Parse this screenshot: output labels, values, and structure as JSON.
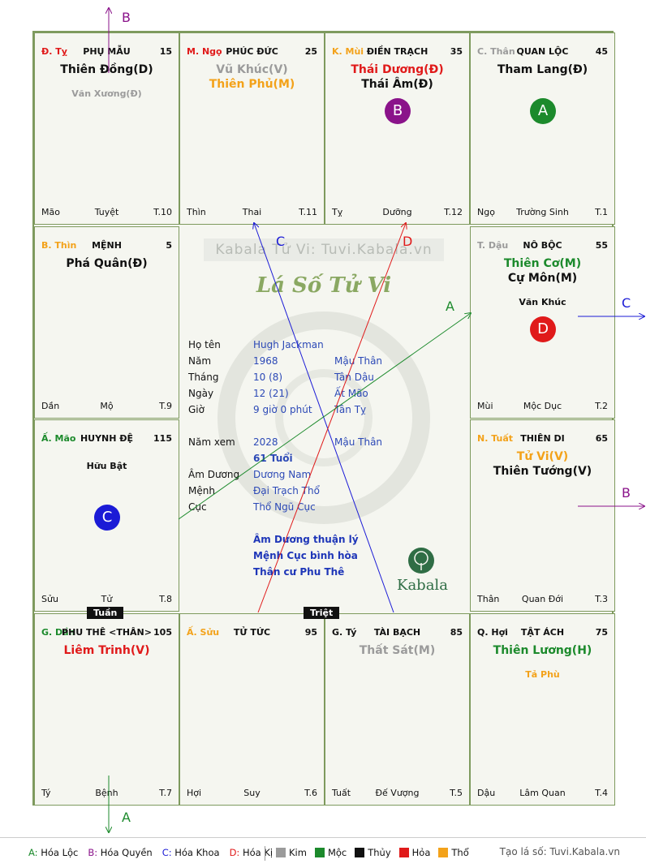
{
  "colors": {
    "green": "#1c8a2c",
    "purple": "#8a138a",
    "blue": "#1b1bd6",
    "red": "#e01a1a",
    "gray": "#9b9b9b",
    "orange": "#f3a21a",
    "border": "#7e9a5e"
  },
  "cells": [
    {
      "can_chi": "Đ. Tỵ",
      "can_chi_color": "#e01a1a",
      "palace": "PHỤ MẪU",
      "num": "15",
      "stars": [
        {
          "t": "Thiên Đồng(D)",
          "c": "#111111"
        }
      ],
      "minor": [
        {
          "t": "Văn Xương(Đ)",
          "c": "#9b9b9b"
        }
      ],
      "bl": "Mão",
      "bc": "Tuyệt",
      "br": "T.10"
    },
    {
      "can_chi": "M. Ngọ",
      "can_chi_color": "#e01a1a",
      "palace": "PHÚC ĐỨC",
      "num": "25",
      "stars": [
        {
          "t": "Vũ Khúc(V)",
          "c": "#9b9b9b"
        },
        {
          "t": "Thiên Phủ(M)",
          "c": "#f3a21a"
        }
      ],
      "minor": [],
      "bl": "Thìn",
      "bc": "Thai",
      "br": "T.11"
    },
    {
      "can_chi": "K. Mùi",
      "can_chi_color": "#f3a21a",
      "palace": "ĐIỀN TRẠCH",
      "num": "35",
      "stars": [
        {
          "t": "Thái Dương(Đ)",
          "c": "#e01a1a"
        },
        {
          "t": "Thái Âm(Đ)",
          "c": "#111111"
        }
      ],
      "minor": [],
      "bl": "Tỵ",
      "bc": "Dưỡng",
      "br": "T.12"
    },
    {
      "can_chi": "C. Thân",
      "can_chi_color": "#9b9b9b",
      "palace": "QUAN LỘC",
      "num": "45",
      "stars": [
        {
          "t": "Tham Lang(Đ)",
          "c": "#111111"
        }
      ],
      "minor": [],
      "bl": "Ngọ",
      "bc": "Trường Sinh",
      "br": "T.1"
    },
    {
      "can_chi": "B. Thìn",
      "can_chi_color": "#f3a21a",
      "palace": "MỆNH",
      "num": "5",
      "stars": [
        {
          "t": "Phá Quân(Đ)",
          "c": "#111111"
        }
      ],
      "minor": [],
      "bl": "Dần",
      "bc": "Mộ",
      "br": "T.9"
    },
    {
      "can_chi": "T. Dậu",
      "can_chi_color": "#9b9b9b",
      "palace": "NÔ BỘC",
      "num": "55",
      "stars": [
        {
          "t": "Thiên Cơ(M)",
          "c": "#1c8a2c"
        },
        {
          "t": "Cự Môn(M)",
          "c": "#111111"
        }
      ],
      "minor": [
        {
          "t": "Văn Khúc",
          "c": "#111111"
        }
      ],
      "bl": "Mùi",
      "bc": "Mộc Dục",
      "br": "T.2"
    },
    {
      "can_chi": "Ấ. Mão",
      "can_chi_color": "#1c8a2c",
      "palace": "HUYNH ĐỆ",
      "num": "115",
      "stars": [],
      "minor": [
        {
          "t": "Hữu Bật",
          "c": "#111111"
        }
      ],
      "bl": "Sửu",
      "bc": "Tử",
      "br": "T.8"
    },
    {
      "can_chi": "N. Tuất",
      "can_chi_color": "#f3a21a",
      "palace": "THIÊN DI",
      "num": "65",
      "stars": [
        {
          "t": "Tử Vi(V)",
          "c": "#f3a21a"
        },
        {
          "t": "Thiên Tướng(V)",
          "c": "#111111"
        }
      ],
      "minor": [],
      "bl": "Thân",
      "bc": "Quan Đới",
      "br": "T.3"
    },
    {
      "can_chi": "G. Dần",
      "can_chi_color": "#1c8a2c",
      "palace": "PHU THÊ <THÂN>",
      "num": "105",
      "stars": [
        {
          "t": "Liêm Trinh(V)",
          "c": "#e01a1a"
        }
      ],
      "minor": [],
      "bl": "Tý",
      "bc": "Bệnh",
      "br": "T.7"
    },
    {
      "can_chi": "Ấ. Sửu",
      "can_chi_color": "#f3a21a",
      "palace": "TỬ TỨC",
      "num": "95",
      "stars": [],
      "minor": [],
      "bl": "Hợi",
      "bc": "Suy",
      "br": "T.6"
    },
    {
      "can_chi": "G. Tý",
      "can_chi_color": "#111111",
      "palace": "TÀI BẠCH",
      "num": "85",
      "stars": [
        {
          "t": "Thất Sát(M)",
          "c": "#9b9b9b"
        }
      ],
      "minor": [],
      "bl": "Tuất",
      "bc": "Đế Vượng",
      "br": "T.5"
    },
    {
      "can_chi": "Q. Hợi",
      "can_chi_color": "#111111",
      "palace": "TẬT ÁCH",
      "num": "75",
      "stars": [
        {
          "t": "Thiên Lương(H)",
          "c": "#1c8a2c"
        }
      ],
      "minor": [
        {
          "t": "Tả Phù",
          "c": "#f3a21a"
        }
      ],
      "bl": "Dậu",
      "bc": "Lâm Quan",
      "br": "T.4"
    }
  ],
  "badges": [
    {
      "letter": "B"
    },
    {
      "letter": "A"
    },
    {
      "letter": "D"
    },
    {
      "letter": "C"
    }
  ],
  "tags": {
    "tuan": "Tuần",
    "triet": "Triệt"
  },
  "center": {
    "site": "Kabala Tử Vi: Tuvi.Kabala.vn",
    "brand": "Lá Số Tử Vi",
    "rows": [
      {
        "label": "Họ tên",
        "v1": "Hugh Jackman",
        "v2": ""
      },
      {
        "label": "Năm",
        "v1": "1968",
        "v2": "Mậu Thân"
      },
      {
        "label": "Tháng",
        "v1": "10  (8)",
        "v2": "Tân Dậu"
      },
      {
        "label": "Ngày",
        "v1": "12  (21)",
        "v2": "Ất Mão"
      },
      {
        "label": "Giờ",
        "v1": "9 giờ 0 phút",
        "v2": "Tân Tỵ"
      },
      {
        "label": "Năm xem",
        "v1": "2028",
        "v2": "Mậu Thân"
      },
      {
        "label": "",
        "v1": "61 Tuổi",
        "v2": ""
      },
      {
        "label": "Âm Dương",
        "v1": "Dương Nam",
        "v2": ""
      },
      {
        "label": "Mệnh",
        "v1": "Đại Trạch Thổ",
        "v2": ""
      },
      {
        "label": "Cục",
        "v1": "Thổ Ngũ Cục",
        "v2": ""
      }
    ],
    "summary": [
      "Âm Dương thuận lý",
      "Mệnh Cục bình hòa",
      "Thân cư Phu Thê"
    ],
    "kabala": "Kabala"
  },
  "arrow_labels": {
    "b_top": "B",
    "c_right": "C",
    "b_right": "B",
    "a_bottom": "A",
    "c_mid": "C",
    "d_mid": "D",
    "a_mid": "A"
  },
  "legend": {
    "hoa": [
      {
        "k": "A:",
        "t": "Hóa Lộc",
        "c": "#1c8a2c"
      },
      {
        "k": "B:",
        "t": "Hóa Quyền",
        "c": "#8a138a"
      },
      {
        "k": "C:",
        "t": "Hóa Khoa",
        "c": "#1b1bd6"
      },
      {
        "k": "D:",
        "t": "Hóa Kị",
        "c": "#e01a1a"
      }
    ],
    "elements": [
      {
        "t": "Kim",
        "c": "#9b9b9b"
      },
      {
        "t": "Mộc",
        "c": "#1c8a2c"
      },
      {
        "t": "Thủy",
        "c": "#111111"
      },
      {
        "t": "Hỏa",
        "c": "#e01a1a"
      },
      {
        "t": "Thổ",
        "c": "#f3a21a"
      }
    ],
    "credit": "Tạo lá số: Tuvi.Kabala.vn"
  }
}
